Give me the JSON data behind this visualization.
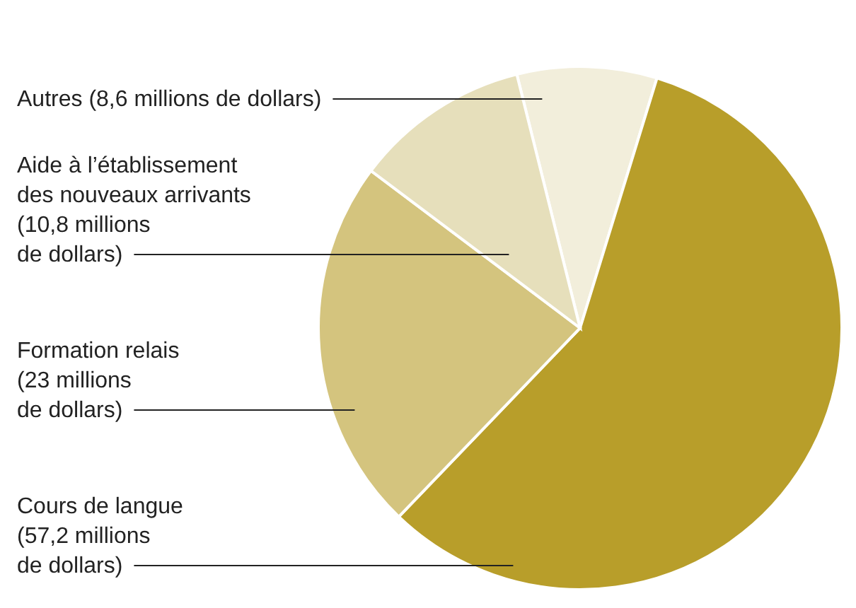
{
  "chart_data": {
    "type": "pie",
    "categories": [
      "Autres (8,6 millions de dollars)",
      "Cours de langue\n(57,2 millions\nde dollars)",
      "Formation relais\n(23 millions\nde dollars)",
      "Aide à l’établissement\ndes nouveaux arrivants\n(10,8 millions\nde dollars)"
    ],
    "values": [
      8.6,
      57.2,
      23,
      10.8
    ],
    "colors": [
      "#f2eedb",
      "#b89e2a",
      "#d4c47e",
      "#e6dfbb"
    ]
  }
}
